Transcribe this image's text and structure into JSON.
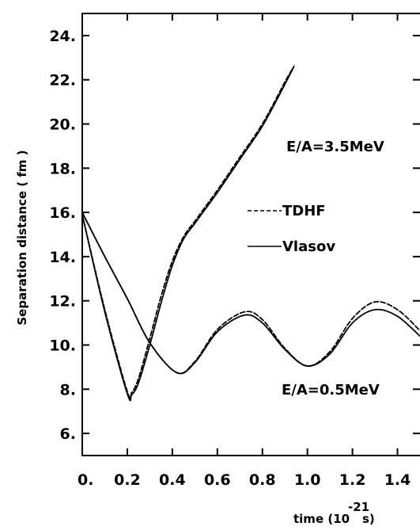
{
  "chart_data": {
    "type": "line",
    "title": "",
    "xlabel": "time (10",
    "xlabel_exp": "-21",
    "xlabel_unit": "s)",
    "ylabel": "Separation distance ( fm )",
    "xlim": [
      0,
      1.5
    ],
    "ylim": [
      5,
      25
    ],
    "x_ticks": [
      0,
      0.2,
      0.4,
      0.6,
      0.8,
      1.0,
      1.2,
      1.4
    ],
    "x_tick_labels": [
      "0.",
      "0.2",
      "0.4",
      "0.6",
      "0.8",
      "1.0",
      "1.2",
      "1.4"
    ],
    "y_ticks": [
      6,
      8,
      10,
      12,
      14,
      16,
      18,
      20,
      22,
      24
    ],
    "y_tick_labels": [
      "6.",
      "8.",
      "10.",
      "12.",
      "14.",
      "16.",
      "18.",
      "20.",
      "22.",
      "24."
    ],
    "legend": [
      {
        "label": "TDHF",
        "style": "dashed"
      },
      {
        "label": "Vlasov",
        "style": "solid"
      }
    ],
    "annotations": [
      "E/A=3.5MeV",
      "E/A=0.5MeV"
    ],
    "series": [
      {
        "name": "TDHF",
        "energy": "E/A=3.5MeV",
        "style": "dashed",
        "x": [
          0,
          0.1,
          0.2,
          0.22,
          0.25,
          0.3,
          0.35,
          0.4,
          0.45,
          0.5,
          0.55,
          0.6,
          0.7,
          0.8,
          0.9,
          0.94
        ],
        "y": [
          15.9,
          11.6,
          7.9,
          7.85,
          8.5,
          10.3,
          12.2,
          13.8,
          14.9,
          15.6,
          16.3,
          17.0,
          18.5,
          20.0,
          21.9,
          22.6
        ]
      },
      {
        "name": "Vlasov",
        "energy": "E/A=3.5MeV",
        "style": "solid",
        "x": [
          0,
          0.1,
          0.2,
          0.22,
          0.25,
          0.3,
          0.35,
          0.4,
          0.45,
          0.5,
          0.55,
          0.6,
          0.7,
          0.8,
          0.9,
          0.94
        ],
        "y": [
          15.9,
          11.5,
          7.8,
          7.75,
          8.3,
          10.0,
          11.9,
          13.6,
          14.8,
          15.5,
          16.2,
          16.9,
          18.4,
          19.9,
          21.8,
          22.6
        ]
      },
      {
        "name": "TDHF",
        "energy": "E/A=0.5MeV",
        "style": "dashed",
        "x": [
          0,
          0.1,
          0.2,
          0.3,
          0.42,
          0.5,
          0.6,
          0.72,
          0.8,
          0.9,
          1.0,
          1.1,
          1.2,
          1.3,
          1.4,
          1.5
        ],
        "y": [
          16.0,
          14.0,
          12.1,
          10.1,
          8.75,
          9.25,
          10.7,
          11.5,
          11.15,
          9.85,
          9.05,
          9.7,
          11.2,
          11.95,
          11.6,
          10.65
        ]
      },
      {
        "name": "Vlasov",
        "energy": "E/A=0.5MeV",
        "style": "solid",
        "x": [
          0,
          0.1,
          0.2,
          0.3,
          0.42,
          0.5,
          0.6,
          0.72,
          0.8,
          0.9,
          1.0,
          1.1,
          1.2,
          1.3,
          1.4,
          1.5
        ],
        "y": [
          16.0,
          14.0,
          12.1,
          10.1,
          8.75,
          9.2,
          10.6,
          11.35,
          11.0,
          9.8,
          9.05,
          9.6,
          11.0,
          11.6,
          11.3,
          10.4
        ]
      }
    ]
  }
}
